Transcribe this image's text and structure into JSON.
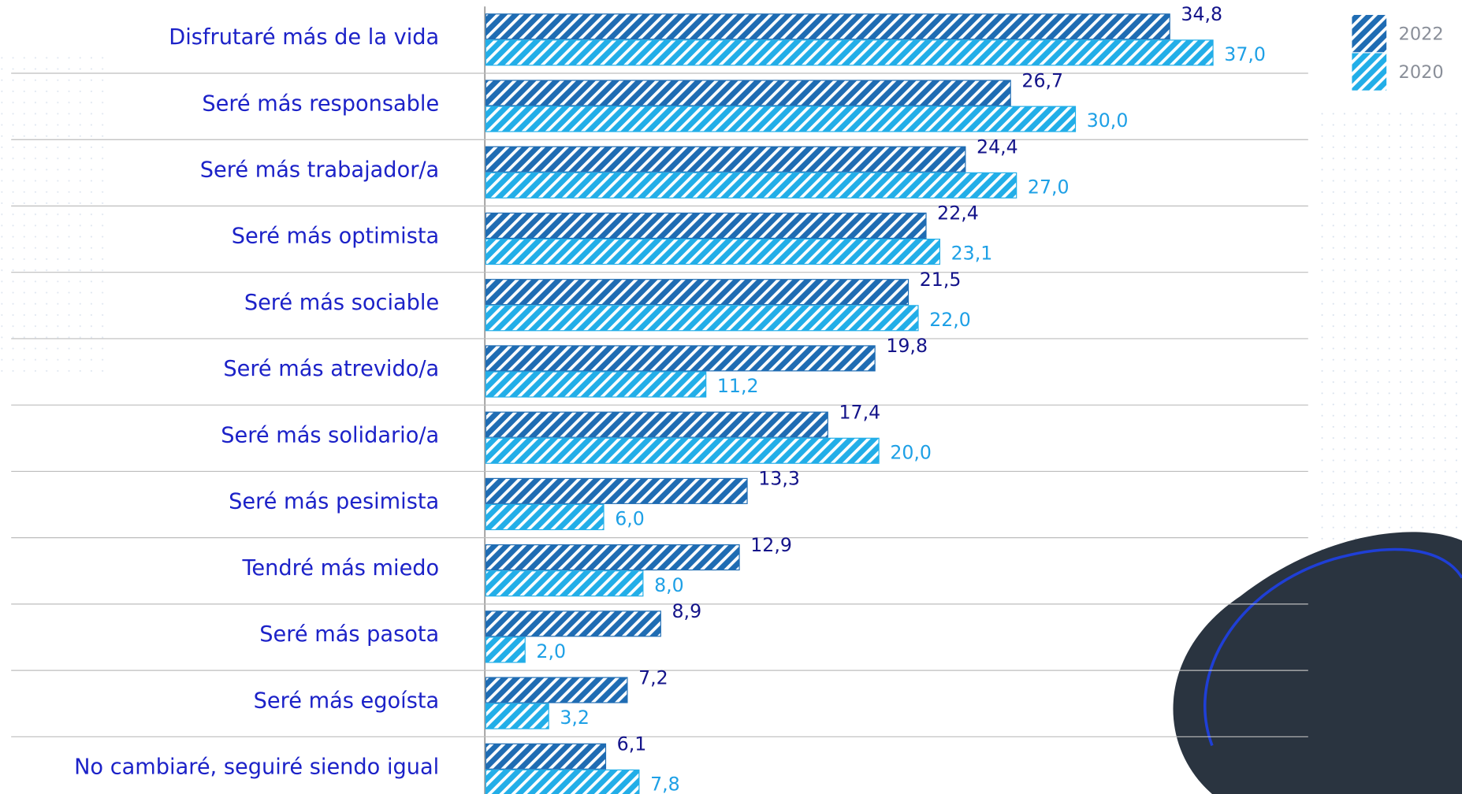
{
  "chart_data": {
    "type": "bar",
    "orientation": "horizontal",
    "categories": [
      "Disfrutaré más de la vida",
      "Seré más responsable",
      "Seré más trabajador/a",
      "Seré más optimista",
      "Seré más sociable",
      "Seré más atrevido/a",
      "Seré más solidario/a",
      "Seré más pesimista",
      "Tendré más miedo",
      "Seré más pasota",
      "Seré más egoísta",
      "No cambiaré, seguiré siendo igual"
    ],
    "series": [
      {
        "name": "2022",
        "color": "#1f6cb3",
        "values": [
          34.8,
          26.7,
          24.4,
          22.4,
          21.5,
          19.8,
          17.4,
          13.3,
          12.9,
          8.9,
          7.2,
          6.1
        ],
        "value_labels": [
          "34,8",
          "26,7",
          "24,4",
          "22,4",
          "21,5",
          "19,8",
          "17,4",
          "13,3",
          "12,9",
          "8,9",
          "7,2",
          "6,1"
        ]
      },
      {
        "name": "2020",
        "color": "#22aee8",
        "values": [
          37.0,
          30.0,
          27.0,
          23.1,
          22.0,
          11.2,
          20.0,
          6.0,
          8.0,
          2.0,
          3.2,
          7.8
        ],
        "value_labels": [
          "37,0",
          "30,0",
          "27,0",
          "23,1",
          "22,0",
          "11,2",
          "20,0",
          "6,0",
          "8,0",
          "2,0",
          "3,2",
          "7,8"
        ]
      }
    ],
    "legend": "top-right"
  }
}
